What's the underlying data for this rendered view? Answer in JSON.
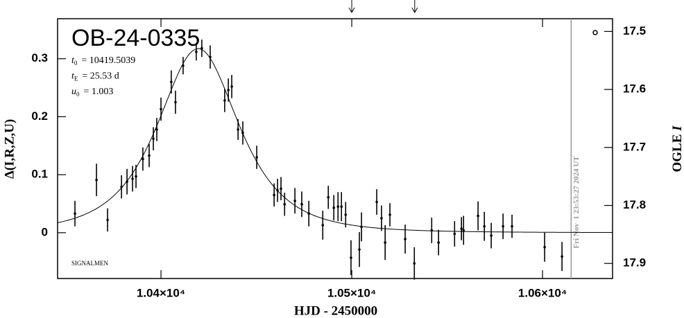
{
  "chart_data": {
    "type": "scatter",
    "title": "OB-24-0335",
    "xlabel": "HJD - 2450000",
    "ylabel": "Δ(I,R,Z,U)",
    "y2label": {
      "text": "OGLE",
      "var": "I"
    },
    "footnote": "SIGNALMEN",
    "xlim": [
      10345.8,
      10636.7
    ],
    "ylim": [
      -0.079,
      0.369
    ],
    "y2lim": [
      17.926,
      17.478
    ],
    "xticks": [
      {
        "value": 10400,
        "label": "1.04×10⁴"
      },
      {
        "value": 10500,
        "label": "1.05×10⁴"
      },
      {
        "value": 10600,
        "label": "1.06×10⁴"
      }
    ],
    "yticks": [
      0,
      0.1,
      0.2,
      0.3
    ],
    "y2ticks": [
      17.5,
      17.6,
      17.7,
      17.8,
      17.9
    ],
    "color": "#000000",
    "model": {
      "t0": 10419.5039,
      "tE": 25.53,
      "u0": 1.003
    },
    "model_labels": [
      {
        "symbol": "t",
        "sub": "0",
        "text": "= 10419.5039"
      },
      {
        "symbol": "t",
        "sub": "E",
        "text": "= 25.53 d"
      },
      {
        "symbol": "u",
        "sub": "0",
        "text": "= 1.003"
      }
    ],
    "arrows": [
      10500,
      10533
    ],
    "now_line": {
      "x": 10615,
      "label": "Fri Nov  1 23:53:27 2024 UT"
    },
    "x": [
      10354.9,
      10366.2,
      10372.0,
      10379.3,
      10382.2,
      10385.1,
      10386.9,
      10390.5,
      10393.8,
      10396.0,
      10397.8,
      10400.0,
      10405.4,
      10407.6,
      10411.6,
      10418.5,
      10421.4,
      10425.8,
      10433.4,
      10435.3,
      10437.1,
      10440.4,
      10442.9,
      10450.2,
      10459.3,
      10461.1,
      10462.9,
      10464.8,
      10470.2,
      10473.8,
      10477.5,
      10484.8,
      10487.7,
      10490.6,
      10492.8,
      10494.6,
      10496.8,
      10499.6,
      10504.0,
      10505.1,
      10513.1,
      10515.6,
      10517.5,
      10520.0,
      10528.0,
      10532.8,
      10541.9,
      10545.5,
      10553.9,
      10557.5,
      10558.6,
      10566.2,
      10569.5,
      10573.1,
      10579.3,
      10584.0,
      10601.1,
      10610.2
    ],
    "values": [
      0.033,
      0.091,
      0.022,
      0.079,
      0.088,
      0.093,
      0.097,
      0.127,
      0.133,
      0.162,
      0.178,
      0.213,
      0.26,
      0.225,
      0.288,
      0.312,
      0.318,
      0.303,
      0.228,
      0.246,
      0.252,
      0.178,
      0.172,
      0.13,
      0.065,
      0.073,
      0.076,
      0.049,
      0.055,
      0.049,
      0.033,
      0.013,
      0.061,
      0.043,
      0.045,
      0.045,
      0.031,
      -0.043,
      -0.029,
      0.01,
      0.053,
      0.025,
      -0.017,
      0.031,
      -0.011,
      -0.053,
      0.004,
      -0.017,
      -0.002,
      0.007,
      0.004,
      0.029,
      0.011,
      -0.005,
      0.011,
      0.011,
      -0.025,
      -0.041
    ],
    "errors": [
      0.022,
      0.028,
      0.02,
      0.02,
      0.022,
      0.022,
      0.02,
      0.02,
      0.02,
      0.02,
      0.02,
      0.02,
      0.02,
      0.02,
      0.015,
      0.015,
      0.015,
      0.02,
      0.02,
      0.02,
      0.02,
      0.018,
      0.02,
      0.02,
      0.02,
      0.02,
      0.02,
      0.02,
      0.022,
      0.022,
      0.022,
      0.025,
      0.02,
      0.022,
      0.025,
      0.025,
      0.022,
      0.03,
      0.03,
      0.025,
      0.022,
      0.022,
      0.03,
      0.02,
      0.025,
      0.028,
      0.022,
      0.022,
      0.022,
      0.02,
      0.025,
      0.025,
      0.025,
      0.022,
      0.022,
      0.02,
      0.025,
      0.025
    ]
  }
}
